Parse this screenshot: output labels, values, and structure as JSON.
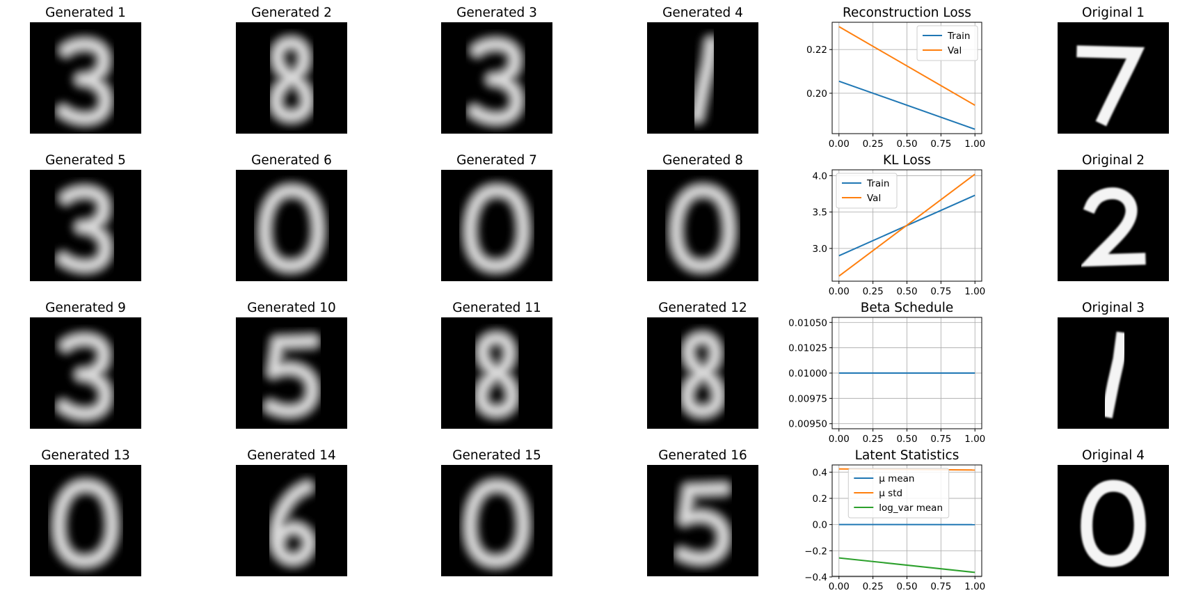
{
  "image_panels": [
    {
      "title": "Generated 1",
      "digit": "3"
    },
    {
      "title": "Generated 2",
      "digit": "8"
    },
    {
      "title": "Generated 3",
      "digit": "3"
    },
    {
      "title": "Generated 4",
      "digit": "1"
    },
    {
      "title": "Generated 5",
      "digit": "3"
    },
    {
      "title": "Generated 6",
      "digit": "0"
    },
    {
      "title": "Generated 7",
      "digit": "0"
    },
    {
      "title": "Generated 8",
      "digit": "0"
    },
    {
      "title": "Generated 9",
      "digit": "3"
    },
    {
      "title": "Generated 10",
      "digit": "5"
    },
    {
      "title": "Generated 11",
      "digit": "8"
    },
    {
      "title": "Generated 12",
      "digit": "8"
    },
    {
      "title": "Generated 13",
      "digit": "0"
    },
    {
      "title": "Generated 14",
      "digit": "6"
    },
    {
      "title": "Generated 15",
      "digit": "0"
    },
    {
      "title": "Generated 16",
      "digit": "5"
    },
    {
      "title": "Original 1",
      "digit": "7"
    },
    {
      "title": "Original 2",
      "digit": "2"
    },
    {
      "title": "Original 3",
      "digit": "1"
    },
    {
      "title": "Original 4",
      "digit": "0"
    }
  ],
  "colors": {
    "blue": "#1f77b4",
    "orange": "#ff7f0e",
    "green": "#2ca02c",
    "grid": "#b0b0b0",
    "image_bg": "#000000"
  },
  "chart_data": [
    {
      "type": "line",
      "title": "Reconstruction Loss",
      "xlabel": "",
      "ylabel": "",
      "xlim": [
        -0.05,
        1.05
      ],
      "ylim": [
        0.1815,
        0.2325
      ],
      "xticks": [
        0,
        0.25,
        0.5,
        0.75,
        1
      ],
      "xtick_labels": [
        "0.00",
        "0.25",
        "0.50",
        "0.75",
        "1.00"
      ],
      "yticks": [
        0.2,
        0.22
      ],
      "ytick_labels": [
        "0.20",
        "0.22"
      ],
      "grid": true,
      "legend": "upper right",
      "series": [
        {
          "name": "Train",
          "x": [
            0,
            1
          ],
          "y": [
            0.2055,
            0.1835
          ],
          "color": "#1f77b4"
        },
        {
          "name": "Val",
          "x": [
            0,
            1
          ],
          "y": [
            0.2305,
            0.1945
          ],
          "color": "#ff7f0e"
        }
      ]
    },
    {
      "type": "line",
      "title": "KL Loss",
      "xlabel": "",
      "ylabel": "",
      "xlim": [
        -0.05,
        1.05
      ],
      "ylim": [
        2.55,
        4.08
      ],
      "xticks": [
        0,
        0.25,
        0.5,
        0.75,
        1
      ],
      "xtick_labels": [
        "0.00",
        "0.25",
        "0.50",
        "0.75",
        "1.00"
      ],
      "yticks": [
        3.0,
        3.5,
        4.0
      ],
      "ytick_labels": [
        "3.0",
        "3.5",
        "4.0"
      ],
      "grid": true,
      "legend": "upper left",
      "series": [
        {
          "name": "Train",
          "x": [
            0,
            1
          ],
          "y": [
            2.9,
            3.73
          ],
          "color": "#1f77b4"
        },
        {
          "name": "Val",
          "x": [
            0,
            1
          ],
          "y": [
            2.62,
            4.02
          ],
          "color": "#ff7f0e"
        }
      ]
    },
    {
      "type": "line",
      "title": "Beta Schedule",
      "xlabel": "",
      "ylabel": "",
      "xlim": [
        -0.05,
        1.05
      ],
      "ylim": [
        0.00945,
        0.01055
      ],
      "xticks": [
        0,
        0.25,
        0.5,
        0.75,
        1
      ],
      "xtick_labels": [
        "0.00",
        "0.25",
        "0.50",
        "0.75",
        "1.00"
      ],
      "yticks": [
        0.0095,
        0.00975,
        0.01,
        0.01025,
        0.0105
      ],
      "ytick_labels": [
        "0.00950",
        "0.00975",
        "0.01000",
        "0.01025",
        "0.01050"
      ],
      "grid": true,
      "legend": "",
      "series": [
        {
          "name": "",
          "x": [
            0,
            1
          ],
          "y": [
            0.01,
            0.01
          ],
          "color": "#1f77b4"
        }
      ]
    },
    {
      "type": "line",
      "title": "Latent Statistics",
      "xlabel": "",
      "ylabel": "",
      "xlim": [
        -0.05,
        1.05
      ],
      "ylim": [
        -0.395,
        0.455
      ],
      "xticks": [
        0,
        0.25,
        0.5,
        0.75,
        1
      ],
      "xtick_labels": [
        "0.00",
        "0.25",
        "0.50",
        "0.75",
        "1.00"
      ],
      "yticks": [
        -0.4,
        -0.2,
        0.0,
        0.2,
        0.4
      ],
      "ytick_labels": [
        "−0.4",
        "−0.2",
        "0.0",
        "0.2",
        "0.4"
      ],
      "grid": true,
      "legend": "upper center",
      "series": [
        {
          "name": "μ mean",
          "x": [
            0,
            1
          ],
          "y": [
            0.0,
            -0.001
          ],
          "color": "#1f77b4"
        },
        {
          "name": "μ std",
          "x": [
            0,
            1
          ],
          "y": [
            0.424,
            0.416
          ],
          "color": "#ff7f0e"
        },
        {
          "name": "log_var mean",
          "x": [
            0,
            1
          ],
          "y": [
            -0.255,
            -0.365
          ],
          "color": "#2ca02c"
        }
      ]
    }
  ]
}
